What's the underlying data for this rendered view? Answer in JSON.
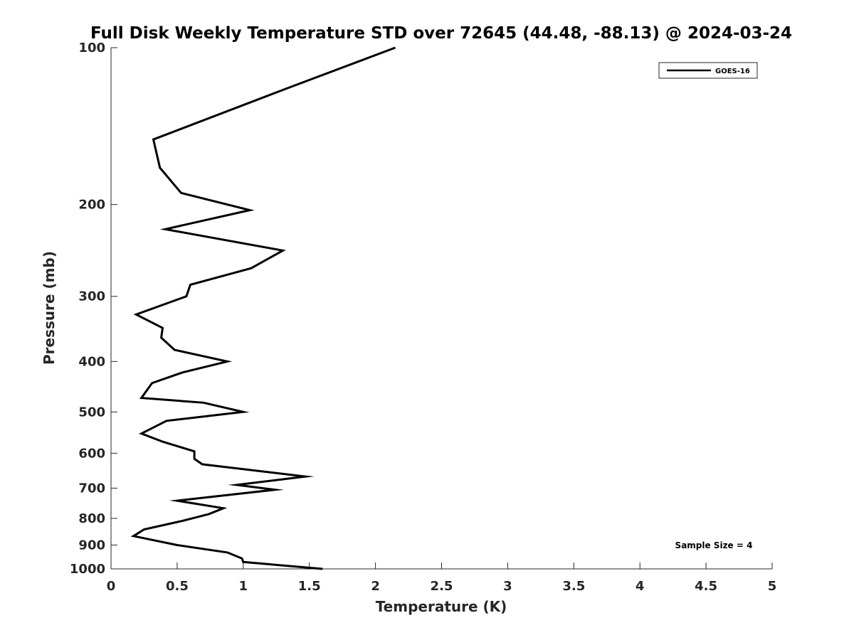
{
  "chart_data": {
    "type": "line",
    "title": "Full Disk Weekly Temperature STD over 72645 (44.48, -88.13) @ 2024-03-24",
    "xlabel": "Temperature (K)",
    "ylabel": "Pressure (mb)",
    "xlim": [
      0,
      5
    ],
    "ylim": [
      1000,
      100
    ],
    "yscale": "log",
    "y_reversed": true,
    "x_ticks": [
      0,
      0.5,
      1,
      1.5,
      2,
      2.5,
      3,
      3.5,
      4,
      4.5,
      5
    ],
    "x_tick_labels": [
      "0",
      "0.5",
      "1",
      "1.5",
      "2",
      "2.5",
      "3",
      "3.5",
      "4",
      "4.5",
      "5"
    ],
    "y_ticks": [
      100,
      200,
      300,
      400,
      500,
      600,
      700,
      800,
      900,
      1000
    ],
    "y_tick_labels": [
      "100",
      "200",
      "300",
      "400",
      "500",
      "600",
      "700",
      "800",
      "900",
      "1000"
    ],
    "grid": false,
    "legend_position": "top-right",
    "line_color": "#000000",
    "series": [
      {
        "name": "GOES-16",
        "x": [
          2.15,
          1.32,
          0.32,
          0.37,
          0.53,
          1.05,
          0.41,
          1.3,
          1.06,
          0.6,
          0.57,
          0.19,
          0.39,
          0.38,
          0.48,
          0.88,
          0.54,
          0.31,
          0.23,
          0.7,
          1.0,
          0.42,
          0.23,
          0.39,
          0.63,
          0.63,
          0.69,
          1.47,
          0.95,
          1.24,
          0.5,
          0.85,
          0.74,
          0.53,
          0.25,
          0.17,
          0.5,
          0.88,
          0.99,
          1.0,
          1.6
        ],
        "y": [
          100,
          120,
          150,
          170,
          190,
          205,
          223,
          245,
          265,
          285,
          300,
          325,
          345,
          360,
          380,
          400,
          420,
          440,
          470,
          480,
          500,
          520,
          550,
          570,
          595,
          615,
          630,
          665,
          690,
          705,
          740,
          765,
          785,
          810,
          840,
          865,
          900,
          930,
          955,
          970,
          1000
        ]
      }
    ],
    "annotation": "Sample Size = 4"
  }
}
